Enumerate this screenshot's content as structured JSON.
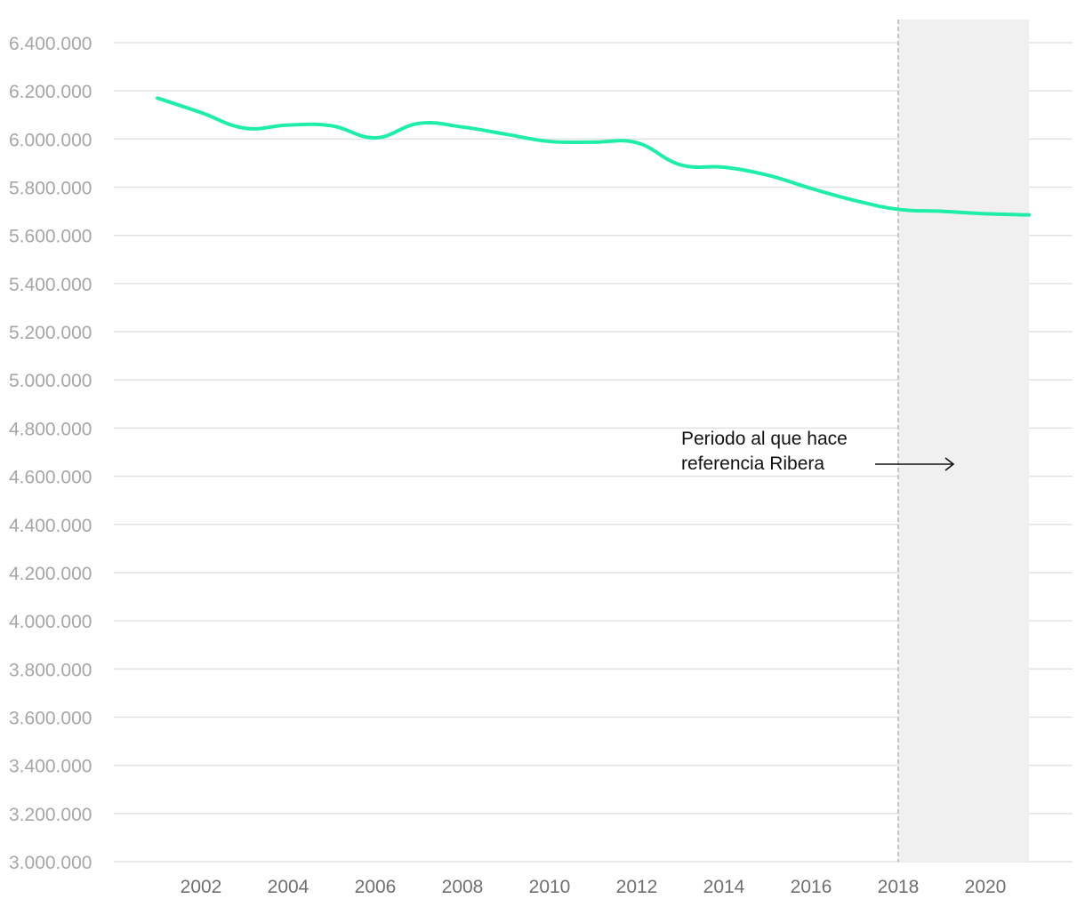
{
  "chart_data": {
    "type": "line",
    "title": "",
    "xlabel": "",
    "ylabel": "",
    "x": [
      2001,
      2002,
      2003,
      2004,
      2005,
      2006,
      2007,
      2008,
      2009,
      2010,
      2011,
      2012,
      2013,
      2014,
      2015,
      2016,
      2017,
      2018,
      2019,
      2020,
      2021
    ],
    "series": [
      {
        "values": [
          6170000,
          6110000,
          6045000,
          6058000,
          6055000,
          6005000,
          6065000,
          6050000,
          6020000,
          5990000,
          5987000,
          5985000,
          5893000,
          5883000,
          5850000,
          5795000,
          5745000,
          5708000,
          5700000,
          5690000,
          5685000
        ],
        "color": "#1eeeaa"
      }
    ],
    "xlim": [
      2000,
      2022
    ],
    "ylim": [
      3000000,
      6400000
    ],
    "x_ticks": [
      {
        "value": 2002,
        "label": "2002"
      },
      {
        "value": 2004,
        "label": "2004"
      },
      {
        "value": 2006,
        "label": "2006"
      },
      {
        "value": 2008,
        "label": "2008"
      },
      {
        "value": 2010,
        "label": "2010"
      },
      {
        "value": 2012,
        "label": "2012"
      },
      {
        "value": 2014,
        "label": "2014"
      },
      {
        "value": 2016,
        "label": "2016"
      },
      {
        "value": 2018,
        "label": "2018"
      },
      {
        "value": 2020,
        "label": "2020"
      }
    ],
    "y_ticks": [
      {
        "value": 6400000,
        "label": "6.400.000"
      },
      {
        "value": 6200000,
        "label": "6.200.000"
      },
      {
        "value": 6000000,
        "label": "6.000.000"
      },
      {
        "value": 5800000,
        "label": "5.800.000"
      },
      {
        "value": 5600000,
        "label": "5.600.000"
      },
      {
        "value": 5400000,
        "label": "5.400.000"
      },
      {
        "value": 5200000,
        "label": "5.200.000"
      },
      {
        "value": 5000000,
        "label": "5.000.000"
      },
      {
        "value": 4800000,
        "label": "4.800.000"
      },
      {
        "value": 4600000,
        "label": "4.600.000"
      },
      {
        "value": 4400000,
        "label": "4.400.000"
      },
      {
        "value": 4200000,
        "label": "4.200.000"
      },
      {
        "value": 4000000,
        "label": "4.000.000"
      },
      {
        "value": 3800000,
        "label": "3.800.000"
      },
      {
        "value": 3600000,
        "label": "3.600.000"
      },
      {
        "value": 3400000,
        "label": "3.400.000"
      },
      {
        "value": 3200000,
        "label": "3.200.000"
      },
      {
        "value": 3000000,
        "label": "3.000.000"
      }
    ],
    "grid": true,
    "highlight_region": {
      "x_start": 2018,
      "x_end": 2021,
      "color": "#f0f0f0",
      "line_color": "#b5b5b5"
    },
    "annotation": {
      "lines": [
        "Periodo al que hace",
        "referencia Ribera"
      ],
      "arrow": "right"
    }
  }
}
